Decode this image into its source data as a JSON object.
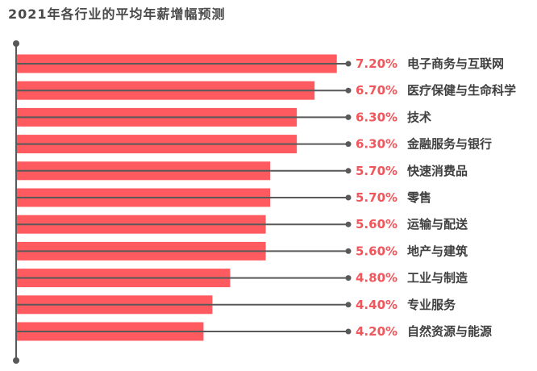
{
  "chart_data": {
    "type": "bar",
    "orientation": "horizontal",
    "title": "2021年各行业的平均年薪增幅预测",
    "categories": [
      "电子商务与互联网",
      "医疗保健与生命科学",
      "技术",
      "金融服务与银行",
      "快速消费品",
      "零售",
      "运输与配送",
      "地产与建筑",
      "工业与制造",
      "专业服务",
      "自然资源与能源"
    ],
    "values": [
      7.2,
      6.7,
      6.3,
      6.3,
      5.7,
      5.7,
      5.6,
      5.6,
      4.8,
      4.4,
      4.2
    ],
    "value_labels": [
      "7.20%",
      "6.70%",
      "6.30%",
      "6.30%",
      "5.70%",
      "5.70%",
      "5.60%",
      "5.60%",
      "4.80%",
      "4.40%",
      "4.20%"
    ],
    "grid": false,
    "legend": "none",
    "colors": {
      "bar": "#ff5a5f",
      "axis": "#595959",
      "value_text": "#f0565b",
      "category_text": "#404040",
      "title_text": "#4a4a4a"
    }
  }
}
